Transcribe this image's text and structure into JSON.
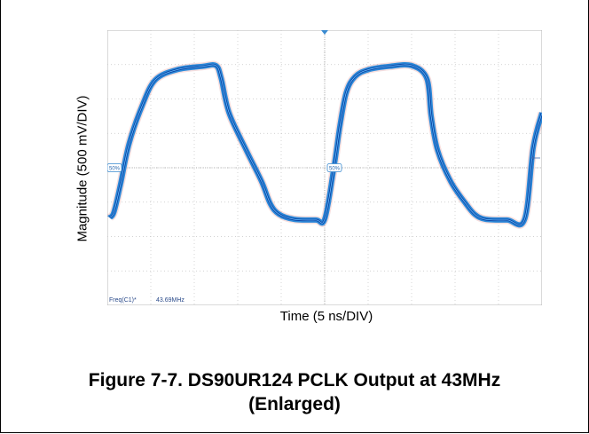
{
  "chart_data": {
    "type": "line",
    "xlabel": "Time (5 ns/DIV)",
    "ylabel": "Magnitude (500 mV/DIV)",
    "x_divisions": 10,
    "y_divisions": 8,
    "x_units_per_div_ns": 5,
    "y_units_per_div_mV": 500,
    "grid": true,
    "measurement": {
      "label": "Freq(C1)*",
      "value": "43.69MHz"
    },
    "markers": [
      "50%",
      "50%"
    ],
    "series": [
      {
        "trace_color": "#1a7bd6",
        "x_div": [
          0.05,
          0.15,
          0.3,
          0.5,
          0.8,
          1.1,
          1.6,
          2.2,
          2.5,
          2.62,
          2.8,
          3.2,
          3.55,
          3.75,
          3.95,
          4.3,
          4.8,
          5.0,
          5.2,
          5.35,
          5.5,
          5.7,
          6.0,
          6.5,
          7.0,
          7.35,
          7.45,
          7.6,
          7.9,
          8.25,
          8.45,
          8.7,
          9.2,
          9.6,
          9.8,
          10.0
        ],
        "y_div": [
          -1.45,
          -1.3,
          -0.5,
          0.7,
          1.8,
          2.55,
          2.85,
          2.95,
          2.97,
          2.6,
          1.6,
          0.5,
          -0.4,
          -1.05,
          -1.35,
          -1.5,
          -1.52,
          -1.5,
          -0.1,
          1.2,
          2.2,
          2.65,
          2.85,
          2.95,
          2.97,
          2.6,
          1.5,
          0.5,
          -0.4,
          -1.05,
          -1.35,
          -1.5,
          -1.52,
          -1.5,
          0.6,
          1.6
        ]
      }
    ]
  },
  "figure": {
    "caption_line1": "Figure 7-7. DS90UR124 PCLK Output at 43MHz",
    "caption_line2": "(Enlarged)"
  }
}
